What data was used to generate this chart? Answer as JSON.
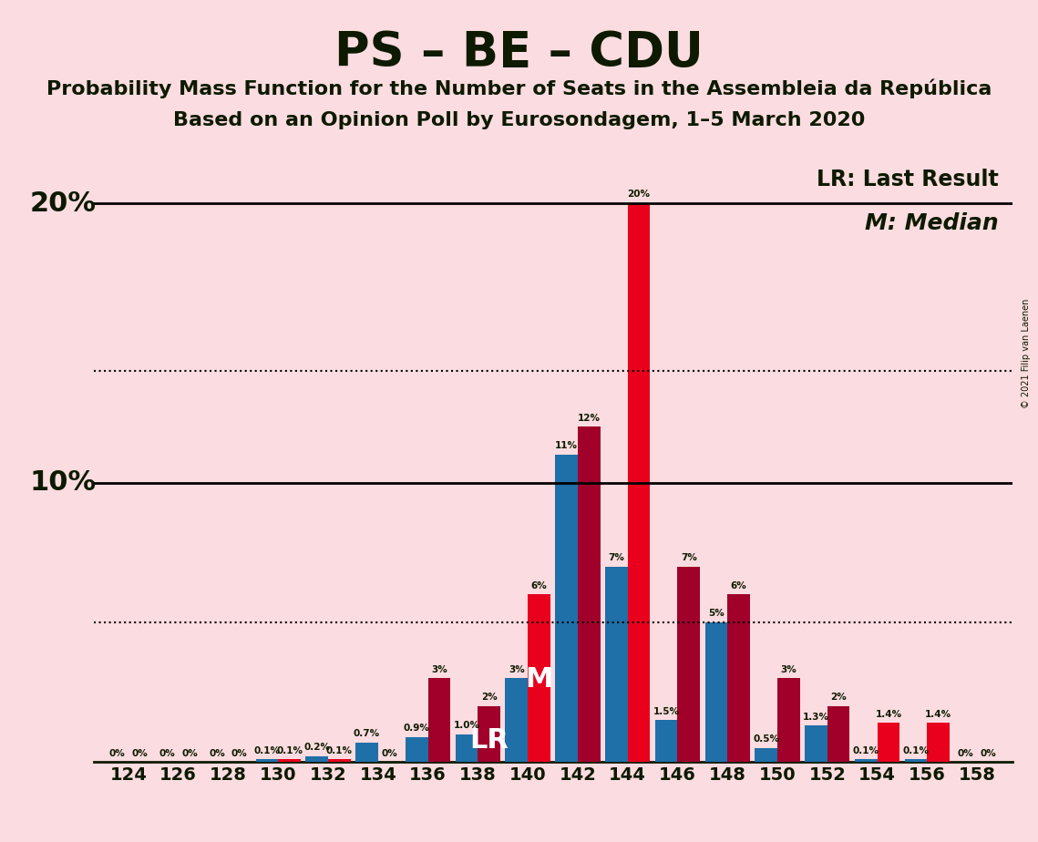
{
  "title": "PS – BE – CDU",
  "subtitle1": "Probability Mass Function for the Number of Seats in the Assembleia da República",
  "subtitle2": "Based on an Opinion Poll by Eurosondagem, 1–5 March 2020",
  "copyright": "© 2021 Filip van Laenen",
  "seats": [
    "124",
    "126",
    "128",
    "130",
    "132",
    "134",
    "136",
    "138",
    "140",
    "142",
    "144",
    "146",
    "148",
    "150",
    "152",
    "154",
    "156",
    "158"
  ],
  "blue_values": [
    0.0,
    0.0,
    0.0,
    0.1,
    0.2,
    0.7,
    0.9,
    1.0,
    3.0,
    11.0,
    7.0,
    1.5,
    5.0,
    0.5,
    1.3,
    0.1,
    0.1,
    0.0
  ],
  "red_values": [
    0.0,
    0.0,
    0.0,
    0.1,
    0.1,
    0.0,
    3.0,
    2.0,
    6.0,
    12.0,
    20.0,
    7.0,
    6.0,
    3.0,
    2.0,
    1.4,
    1.4,
    0.0
  ],
  "blue_labels": [
    "0%",
    "0%",
    "0%",
    "0.1%",
    "0.2%",
    "0.7%",
    "0.9%",
    "1.0%",
    "3%",
    "11%",
    "7%",
    "1.5%",
    "5%",
    "0.5%",
    "1.3%",
    "0.1%",
    "0.1%",
    "0%"
  ],
  "red_labels": [
    "0%",
    "0%",
    "0%",
    "0.1%",
    "0.1%",
    "0%",
    "3%",
    "2%",
    "6%",
    "12%",
    "20%",
    "7%",
    "6%",
    "3%",
    "2%",
    "1.4%",
    "1.4%",
    "0%"
  ],
  "blue_color": "#1F6FA8",
  "red_color": "#E8001C",
  "dark_red_color": "#A0002A",
  "background_color": "#FBDCE0",
  "text_color": "#0D1A00",
  "ylim_max": 22,
  "solid_lines": [
    20.0,
    10.0
  ],
  "dotted_lines": [
    14.0,
    5.0
  ],
  "lr_label": "LR: Last Result",
  "m_label": "M: Median",
  "lr_seat_index": 7,
  "m_seat_index": 8,
  "bar_width": 0.45,
  "ylabel_20_pos": [
    0.065,
    0.745
  ],
  "ylabel_10_pos": [
    0.065,
    0.495
  ]
}
